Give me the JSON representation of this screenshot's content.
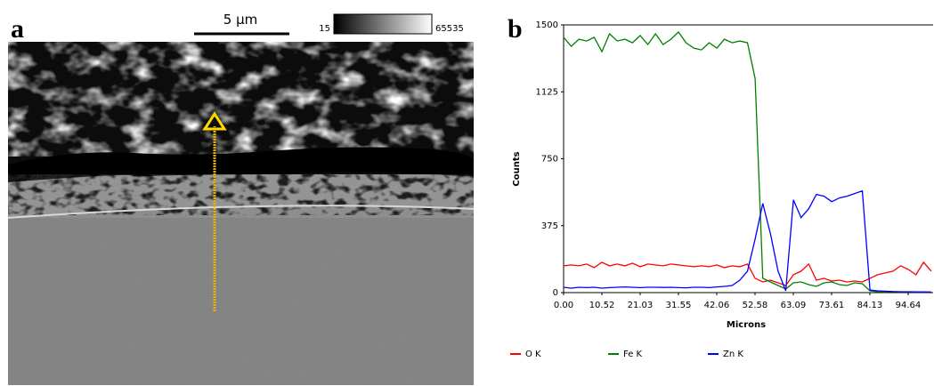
{
  "panel_labels": [
    "a",
    "b"
  ],
  "micrograph": {
    "scale_bar": "5 μm",
    "intensity_min": 15,
    "intensity_max": 65535
  },
  "chart_data": {
    "type": "line",
    "x_label": "Microns",
    "y_label": "Counts",
    "x": [
      0,
      2.1,
      4.21,
      6.31,
      8.42,
      10.52,
      12.62,
      14.73,
      16.83,
      18.94,
      21.04,
      23.14,
      25.25,
      27.35,
      29.46,
      31.56,
      33.66,
      35.77,
      37.87,
      39.98,
      42.08,
      44.18,
      46.29,
      48.39,
      50.5,
      52.6,
      54.7,
      56.81,
      58.91,
      61.02,
      63.12,
      65.22,
      67.33,
      69.43,
      71.54,
      73.64,
      75.74,
      77.85,
      79.95,
      82.06,
      84.16,
      86.26,
      88.37,
      90.47,
      92.58,
      94.68,
      96.78,
      98.89,
      100.99
    ],
    "series": [
      {
        "name": "O K",
        "color": "#ff0000",
        "values": [
          150,
          155,
          150,
          160,
          140,
          170,
          150,
          160,
          150,
          165,
          145,
          160,
          155,
          150,
          160,
          155,
          150,
          145,
          150,
          145,
          155,
          140,
          150,
          145,
          160,
          80,
          60,
          70,
          55,
          40,
          100,
          120,
          160,
          70,
          80,
          65,
          70,
          60,
          65,
          60,
          80,
          100,
          110,
          120,
          150,
          130,
          100,
          170,
          120
        ]
      },
      {
        "name": "Fe K",
        "color": "#008000",
        "values": [
          1430,
          1380,
          1420,
          1410,
          1430,
          1350,
          1450,
          1410,
          1420,
          1400,
          1440,
          1390,
          1450,
          1390,
          1420,
          1460,
          1400,
          1370,
          1360,
          1400,
          1370,
          1420,
          1400,
          1410,
          1400,
          1200,
          80,
          60,
          40,
          20,
          55,
          60,
          45,
          35,
          55,
          60,
          45,
          40,
          55,
          50,
          10,
          5,
          5,
          5,
          4,
          4,
          3,
          3,
          3
        ]
      },
      {
        "name": "Zn K",
        "color": "#0000ff",
        "values": [
          30,
          25,
          30,
          28,
          30,
          25,
          28,
          30,
          32,
          30,
          28,
          30,
          30,
          29,
          30,
          28,
          27,
          30,
          30,
          28,
          32,
          35,
          40,
          70,
          120,
          300,
          500,
          330,
          120,
          10,
          520,
          420,
          470,
          550,
          540,
          510,
          530,
          540,
          555,
          570,
          15,
          10,
          8,
          6,
          5,
          5,
          4,
          4,
          3
        ]
      }
    ],
    "xlim": [
      0,
      101.5
    ],
    "xticks": [
      {
        "value": 0,
        "label": "0.00"
      },
      10.52,
      21.03,
      31.55,
      42.06,
      52.58,
      63.09,
      73.61,
      84.13,
      94.64
    ],
    "ylim": [
      0,
      1500
    ],
    "yticks": [
      0,
      375,
      750,
      1125,
      1500
    ],
    "grid": false
  }
}
